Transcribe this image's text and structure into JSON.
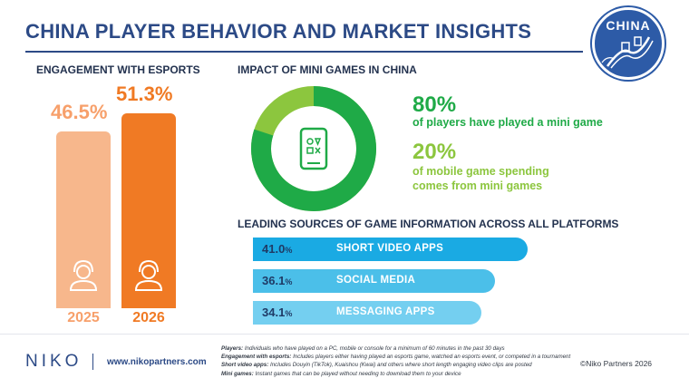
{
  "header": {
    "title": "CHINA PLAYER BEHAVIOR AND MARKET INSIGHTS",
    "badge": "CHINA"
  },
  "colors": {
    "navy": "#2c4a86",
    "light_orange": "#f7b78c",
    "orange": "#f07a24",
    "green_dark": "#1faa47",
    "green_light": "#8cc63e",
    "blue1": "#1aaae3",
    "blue2": "#4bbfe9",
    "blue3": "#74cff0"
  },
  "esports": {
    "heading": "ENGAGEMENT WITH ESPORTS",
    "items": [
      {
        "year": "2025",
        "value_label": "46.5%",
        "value": 46.5
      },
      {
        "year": "2026",
        "value_label": "51.3%",
        "value": 51.3
      }
    ]
  },
  "mini_games": {
    "heading": "IMPACT OF MINI GAMES IN CHINA",
    "stat1": {
      "value": "80%",
      "line1": "of players have played a mini game"
    },
    "stat2": {
      "value": "20%",
      "line1": "of mobile game spending",
      "line2": "comes from mini games"
    },
    "donut_percent": 80
  },
  "sources": {
    "heading": "LEADING SOURCES OF GAME INFORMATION ACROSS ALL PLATFORMS",
    "items": [
      {
        "value_num": "41.0",
        "value_sign": "%",
        "label": "SHORT VIDEO APPS",
        "value": 41.0
      },
      {
        "value_num": "36.1",
        "value_sign": "%",
        "label": "SOCIAL MEDIA",
        "value": 36.1
      },
      {
        "value_num": "34.1",
        "value_sign": "%",
        "label": "MESSAGING APPS",
        "value": 34.1
      }
    ]
  },
  "chart_data": [
    {
      "type": "bar",
      "title": "ENGAGEMENT WITH ESPORTS",
      "categories": [
        "2025",
        "2026"
      ],
      "values": [
        46.5,
        51.3
      ],
      "unit": "%"
    },
    {
      "type": "pie",
      "title": "IMPACT OF MINI GAMES IN CHINA",
      "categories": [
        "of players have played a mini game",
        ""
      ],
      "values": [
        80,
        20
      ],
      "unit": "%"
    },
    {
      "type": "bar",
      "title": "LEADING SOURCES OF GAME INFORMATION ACROSS ALL PLATFORMS",
      "categories": [
        "SHORT VIDEO APPS",
        "SOCIAL MEDIA",
        "MESSAGING APPS"
      ],
      "values": [
        41.0,
        36.1,
        34.1
      ],
      "unit": "%",
      "orientation": "horizontal"
    }
  ],
  "footer": {
    "logo": "NIKO",
    "url": "www.nikopartners.com",
    "notes": [
      {
        "term": "Players:",
        "text": " Individuals who have played on a PC, mobile or console for a minimum of 60 minutes in the past 30 days"
      },
      {
        "term": "Engagement with esports:",
        "text": " Includes players either having played an esports game, watched an esports event, or competed in a tournament"
      },
      {
        "term": "Short video apps:",
        "text": " Includes Douyin (TikTok), Kuaishou (Kwai) and others where short length engaging video clips are posted"
      },
      {
        "term": "Mini games:",
        "text": " Instant games that can be played without needing to download them to your device"
      }
    ],
    "copyright": "©Niko Partners 2026"
  }
}
